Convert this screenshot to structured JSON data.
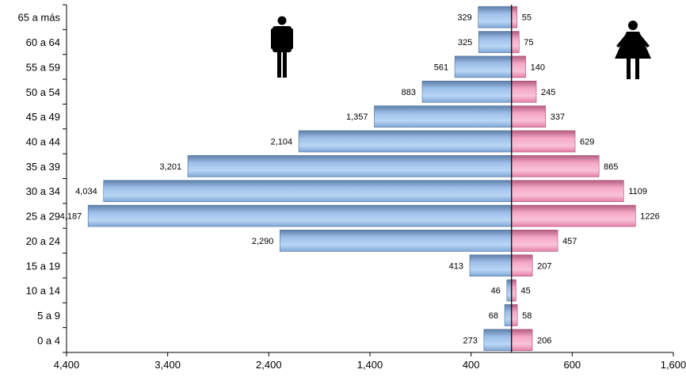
{
  "chart_data": {
    "type": "bar",
    "orientation": "horizontal-pyramid",
    "categories": [
      "65 a más",
      "60 a 64",
      "55 a 59",
      "50 a 54",
      "45 a 49",
      "40 a 44",
      "35 a 39",
      "30 a 34",
      "25 a 29",
      "20 a 24",
      "15 a 19",
      "10 a 14",
      "5 a 9",
      "0 a 4"
    ],
    "series": [
      {
        "icon": "male-icon",
        "color": "#7FA7D6",
        "values": [
          329,
          325,
          561,
          883,
          1357,
          2104,
          3201,
          4034,
          4187,
          2290,
          413,
          46,
          68,
          273
        ],
        "labels": [
          "329",
          "325",
          "561",
          "883",
          "1,357",
          "2,104",
          "3,201",
          "4,034",
          "4,187",
          "2,290",
          "413",
          "46",
          "68",
          "273"
        ]
      },
      {
        "icon": "female-icon",
        "color": "#F08BB0",
        "values": [
          55,
          75,
          140,
          245,
          337,
          629,
          865,
          1109,
          1226,
          457,
          207,
          45,
          58,
          206
        ],
        "labels": [
          "55",
          "75",
          "140",
          "245",
          "337",
          "629",
          "865",
          "1109",
          "1226",
          "457",
          "207",
          "45",
          "58",
          "206"
        ]
      }
    ],
    "xtick_labels": [
      "4,400",
      "3,400",
      "2,400",
      "1,400",
      "400",
      "600",
      "1,600"
    ],
    "xtick_values": [
      -4400,
      -3400,
      -2400,
      -1400,
      -400,
      600,
      1600
    ],
    "xlim": [
      -4400,
      1600
    ],
    "grid": false,
    "legend": "icons"
  }
}
